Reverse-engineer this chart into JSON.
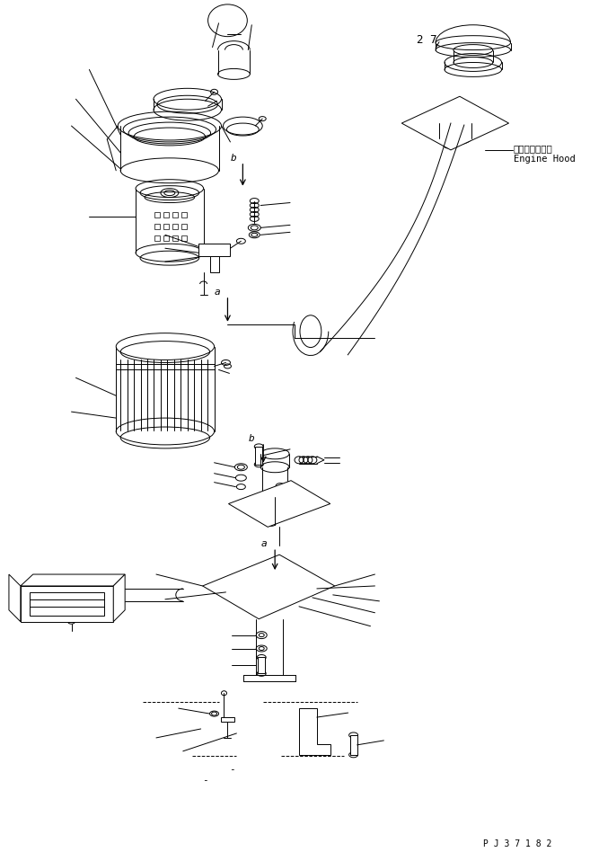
{
  "bg_color": "#ffffff",
  "line_color": "#000000",
  "lw": 0.7,
  "part_number": "P J 3 7 1 8 2",
  "engine_hood_jp": "エンジンフード",
  "engine_hood_en": "Engine Hood",
  "label_27": "2 7",
  "figsize": [
    6.57,
    9.58
  ],
  "dpi": 100
}
